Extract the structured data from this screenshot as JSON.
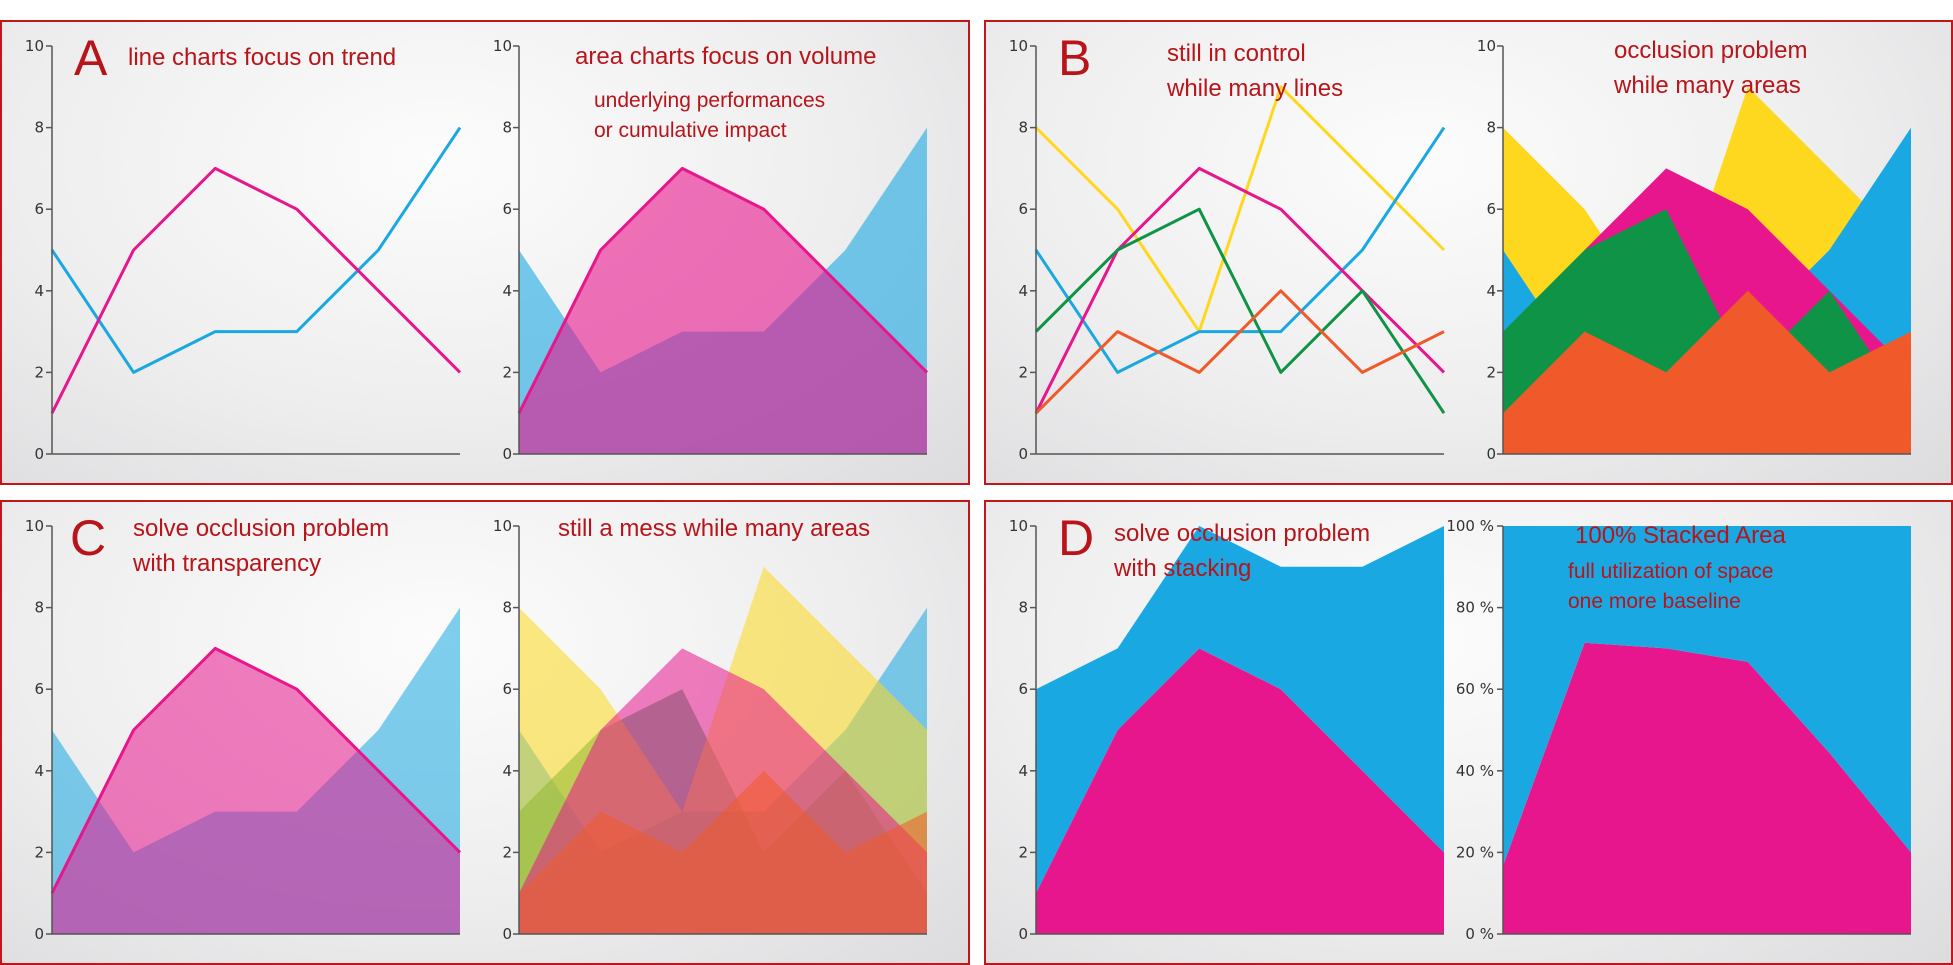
{
  "panels": {
    "A": {
      "letter": "A",
      "left_title": "line charts focus on trend",
      "right_title": "area charts focus on volume",
      "right_note_1": "underlying performances",
      "right_note_2": "or cumulative impact"
    },
    "B": {
      "letter": "B",
      "left_title_1": "still in control",
      "left_title_2": "while many lines",
      "right_title_1": "occlusion problem",
      "right_title_2": "while many areas"
    },
    "C": {
      "letter": "C",
      "left_title_1": "solve occlusion problem",
      "left_title_2": "with transparency",
      "right_title": "still a mess while many areas"
    },
    "D": {
      "letter": "D",
      "left_title_1": "solve occlusion problem",
      "left_title_2": "with stacking",
      "right_title": "100% Stacked Area",
      "right_note_1": "full utilization of space",
      "right_note_2": "one more baseline"
    }
  },
  "colors": {
    "pink": "#e8168c",
    "blue": "#1aa8e2",
    "yellow": "#fdd81e",
    "green": "#0f9447",
    "orange": "#f05a2a",
    "accent_red": "#b8141a"
  },
  "chart_data": [
    {
      "id": "A-left",
      "type": "line",
      "x": [
        0,
        1,
        2,
        3,
        4,
        5
      ],
      "ylim": [
        0,
        10
      ],
      "yticks": [
        "0",
        "2",
        "4",
        "6",
        "8",
        "10"
      ],
      "series": [
        {
          "color": "blue",
          "values": [
            5,
            2,
            3,
            3,
            5,
            8
          ]
        },
        {
          "color": "pink",
          "values": [
            1,
            5,
            7,
            6,
            4,
            2
          ]
        }
      ]
    },
    {
      "id": "A-right",
      "type": "area",
      "x": [
        0,
        1,
        2,
        3,
        4,
        5
      ],
      "ylim": [
        0,
        10
      ],
      "yticks": [
        "0",
        "2",
        "4",
        "6",
        "8",
        "10"
      ],
      "series": [
        {
          "color": "blue",
          "values": [
            5,
            2,
            3,
            3,
            5,
            8
          ]
        },
        {
          "color": "pink",
          "values": [
            1,
            5,
            7,
            6,
            4,
            2
          ]
        }
      ]
    },
    {
      "id": "B-left",
      "type": "line",
      "x": [
        0,
        1,
        2,
        3,
        4,
        5
      ],
      "ylim": [
        0,
        10
      ],
      "yticks": [
        "0",
        "2",
        "4",
        "6",
        "8",
        "10"
      ],
      "series": [
        {
          "color": "yellow",
          "values": [
            8,
            6,
            3,
            9,
            7,
            5
          ]
        },
        {
          "color": "blue",
          "values": [
            5,
            2,
            3,
            3,
            5,
            8
          ]
        },
        {
          "color": "pink",
          "values": [
            1,
            5,
            7,
            6,
            4,
            2
          ]
        },
        {
          "color": "green",
          "values": [
            3,
            5,
            6,
            2,
            4,
            1
          ]
        },
        {
          "color": "orange",
          "values": [
            1,
            3,
            2,
            4,
            2,
            3
          ]
        }
      ]
    },
    {
      "id": "B-right",
      "type": "area",
      "x": [
        0,
        1,
        2,
        3,
        4,
        5
      ],
      "ylim": [
        0,
        10
      ],
      "yticks": [
        "0",
        "2",
        "4",
        "6",
        "8",
        "10"
      ],
      "series": [
        {
          "color": "yellow",
          "values": [
            8,
            6,
            3,
            9,
            7,
            5
          ]
        },
        {
          "color": "blue",
          "values": [
            5,
            2,
            3,
            3,
            5,
            8
          ]
        },
        {
          "color": "pink",
          "values": [
            1,
            5,
            7,
            6,
            4,
            2
          ]
        },
        {
          "color": "green",
          "values": [
            3,
            5,
            6,
            2,
            4,
            1
          ]
        },
        {
          "color": "orange",
          "values": [
            1,
            3,
            2,
            4,
            2,
            3
          ]
        }
      ]
    },
    {
      "id": "C-left",
      "type": "area",
      "x": [
        0,
        1,
        2,
        3,
        4,
        5
      ],
      "ylim": [
        0,
        10
      ],
      "yticks": [
        "0",
        "2",
        "4",
        "6",
        "8",
        "10"
      ],
      "transparent": true,
      "series": [
        {
          "color": "blue",
          "values": [
            5,
            2,
            3,
            3,
            5,
            8
          ]
        },
        {
          "color": "pink",
          "values": [
            1,
            5,
            7,
            6,
            4,
            2
          ]
        }
      ]
    },
    {
      "id": "C-right",
      "type": "area",
      "x": [
        0,
        1,
        2,
        3,
        4,
        5
      ],
      "ylim": [
        0,
        10
      ],
      "yticks": [
        "0",
        "2",
        "4",
        "6",
        "8",
        "10"
      ],
      "transparent": true,
      "series": [
        {
          "color": "blue",
          "values": [
            5,
            2,
            3,
            3,
            5,
            8
          ]
        },
        {
          "color": "green",
          "values": [
            3,
            5,
            6,
            2,
            4,
            1
          ]
        },
        {
          "color": "yellow",
          "values": [
            8,
            6,
            3,
            9,
            7,
            5
          ]
        },
        {
          "color": "pink",
          "values": [
            1,
            5,
            7,
            6,
            4,
            2
          ]
        },
        {
          "color": "orange",
          "values": [
            1,
            3,
            2,
            4,
            2,
            3
          ]
        }
      ]
    },
    {
      "id": "D-left",
      "type": "area",
      "stacked": true,
      "x": [
        0,
        1,
        2,
        3,
        4,
        5
      ],
      "ylim": [
        0,
        10
      ],
      "yticks": [
        "0",
        "2",
        "4",
        "6",
        "8",
        "10"
      ],
      "series": [
        {
          "color": "pink",
          "values": [
            1,
            5,
            7,
            6,
            4,
            2
          ]
        },
        {
          "color": "blue",
          "values": [
            5,
            2,
            3,
            3,
            5,
            8
          ]
        }
      ]
    },
    {
      "id": "D-right",
      "type": "area",
      "stacked_percent": true,
      "x": [
        0,
        1,
        2,
        3,
        4,
        5
      ],
      "ylim": [
        0,
        100
      ],
      "yticks": [
        "0 %",
        "20 %",
        "40 %",
        "60 %",
        "80 %",
        "100 %"
      ],
      "series": [
        {
          "color": "pink",
          "values": [
            16.7,
            71.4,
            70,
            66.7,
            44.4,
            20
          ]
        },
        {
          "color": "blue",
          "values": [
            83.3,
            28.6,
            30,
            33.3,
            55.6,
            80
          ]
        }
      ]
    }
  ]
}
